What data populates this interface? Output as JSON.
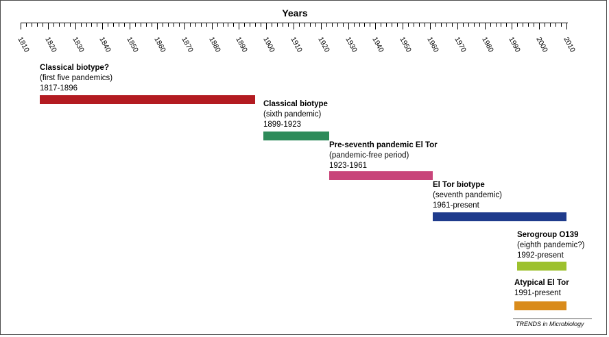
{
  "axis": {
    "title": "Years",
    "start_year": 1810,
    "end_year": 2010,
    "tick_labels": [
      "1810",
      "1820",
      "1830",
      "1840",
      "1850",
      "1860",
      "1870",
      "1880",
      "1890",
      "1900",
      "1910",
      "1920",
      "1930",
      "1940",
      "1950",
      "1960",
      "1970",
      "1980",
      "1990",
      "2000",
      "2010"
    ]
  },
  "periods": [
    {
      "title": "Classical biotype?",
      "subtitle": "(first five pandemics)",
      "years": "1817-1896",
      "start": 1817,
      "end": 1896,
      "color": "#b31b21"
    },
    {
      "title": "Classical biotype",
      "subtitle": "(sixth pandemic)",
      "years": "1899-1923",
      "start": 1899,
      "end": 1923,
      "color": "#2e8b5a"
    },
    {
      "title": "Pre-seventh pandemic El Tor",
      "subtitle": "(pandemic-free period)",
      "years": "1923-1961",
      "start": 1923,
      "end": 1961,
      "color": "#c8457a"
    },
    {
      "title": "El Tor biotype",
      "subtitle": "(seventh pandemic)",
      "years": "1961-present",
      "start": 1961,
      "end": 2010,
      "color": "#1f3b8c"
    },
    {
      "title": "Serogroup O139",
      "subtitle": "(eighth pandemic?)",
      "years": "1992-present",
      "start": 1992,
      "end": 2010,
      "color": "#9dc12e"
    },
    {
      "title": "Atypical El Tor",
      "subtitle": "",
      "years": "1991-present",
      "start": 1991,
      "end": 2010,
      "color": "#d98b1b"
    }
  ],
  "credit": "TRENDS in Microbiology"
}
